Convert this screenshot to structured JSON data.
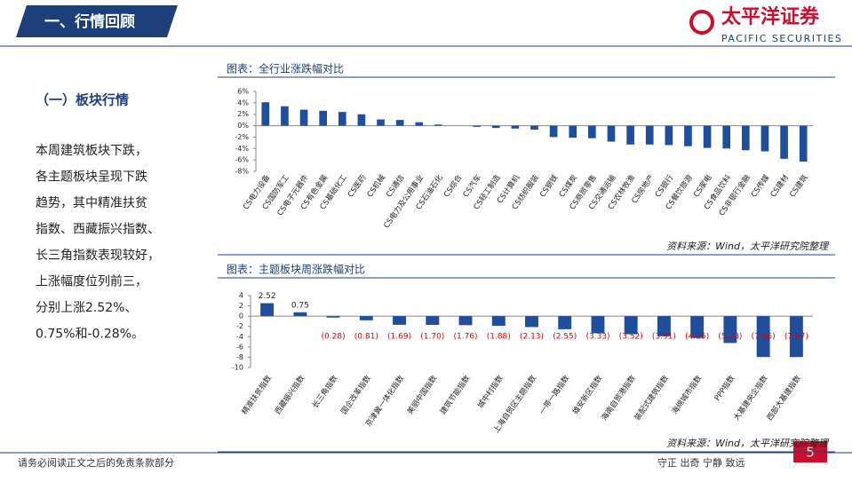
{
  "header": {
    "title": "一、行情回顾",
    "logo": "太平洋证券",
    "logo_en": "PACIFIC SECURITIES"
  },
  "section": {
    "title": "（一）板块行情",
    "lines": [
      "本周建筑板块下跌，",
      "各主题板块呈现下跌",
      "趋势，其中精准扶贫",
      "指数、西藏振兴指数、",
      "长三角指数表现较好，",
      "上涨幅度位列前三，",
      "分别上涨2.52%、",
      "0.75%和-0.28%。"
    ]
  },
  "chart_data": [
    {
      "type": "bar",
      "title": "图表：全行业涨跌幅对比",
      "source": "资料来源：Wind，太平洋研究院整理",
      "color": "#1f4e9c",
      "categories": [
        "CS电力设备",
        "CS国防军工",
        "CS电子元器件",
        "CS有色金属",
        "CS基础化工",
        "CS医药",
        "CS机械",
        "CS通信",
        "CS电力及公用事业",
        "CS石油石化",
        "CS综合",
        "CS汽车",
        "CS轻工制造",
        "CS计算机",
        "CS纺织服装",
        "CS钢铁",
        "CS煤炭",
        "CS商贸零售",
        "CS交通运输",
        "CS农林牧渔",
        "CS房地产",
        "CS银行",
        "CS餐饮旅游",
        "CS家电",
        "CS食品饮料",
        "CS非银行金融",
        "CS传媒",
        "CS建材",
        "CS建筑"
      ],
      "values": [
        4.1,
        3.4,
        2.8,
        2.6,
        2.4,
        2.0,
        1.1,
        1.0,
        0.6,
        0.2,
        0.0,
        -0.2,
        -0.4,
        -0.5,
        -0.7,
        -2.0,
        -2.1,
        -2.2,
        -2.8,
        -3.3,
        -3.3,
        -3.4,
        -3.6,
        -3.9,
        -4.0,
        -4.3,
        -4.5,
        -5.8,
        -6.3
      ],
      "ylim": [
        -8,
        6
      ],
      "yticks": [
        {
          "value": 6,
          "label": "6%"
        },
        {
          "value": 4,
          "label": "4%"
        },
        {
          "value": 2,
          "label": "2%"
        },
        {
          "value": 0,
          "label": "0%"
        },
        {
          "value": -2,
          "label": "-2%"
        },
        {
          "value": -4,
          "label": "-4%"
        },
        {
          "value": -6,
          "label": "-6%"
        },
        {
          "value": -8,
          "label": "-8%"
        }
      ]
    },
    {
      "type": "bar",
      "title": "图表：主题板块周涨跌幅对比",
      "source": "资料来源：Wind，太平洋研究院整理",
      "color": "#1f4e9c",
      "negative_label_color": "#e00000",
      "categories": [
        "精准扶贫指数",
        "西藏振兴指数",
        "长三角指数",
        "国企改革指数",
        "京津冀一体化指数",
        "美丽中国指数",
        "建筑节能指数",
        "城中村指数",
        "上海自贸区主题指数",
        "一带一路指数",
        "雄安新区指数",
        "海南自贸港指数",
        "装配式建筑指数",
        "海绵城市指数",
        "PPP指数",
        "大基建央企指数",
        "西部大基建指数"
      ],
      "values": [
        2.52,
        0.75,
        -0.28,
        -0.81,
        -1.69,
        -1.7,
        -1.76,
        -1.88,
        -2.13,
        -2.55,
        -3.33,
        -3.52,
        -3.91,
        -4.25,
        -5.23,
        -7.96,
        -7.97
      ],
      "value_labels": [
        "2.52",
        "0.75",
        "(0.28)",
        "(0.81)",
        "(1.69)",
        "(1.70)",
        "(1.76)",
        "(1.88)",
        "(2.13)",
        "(2.55)",
        "(3.33)",
        "(3.52)",
        "(3.91)",
        "(4.25)",
        "(5.23)",
        "(7.96)",
        "(7.97)"
      ],
      "ylim": [
        -10,
        4
      ],
      "yticks": [
        4,
        2,
        0,
        -2,
        -4,
        -6,
        -8,
        -10
      ]
    }
  ],
  "footer": {
    "disclaimer": "请务必阅读正文之后的免责条款部分",
    "motto": "守正 出奇 宁静 致远",
    "page": "5"
  }
}
